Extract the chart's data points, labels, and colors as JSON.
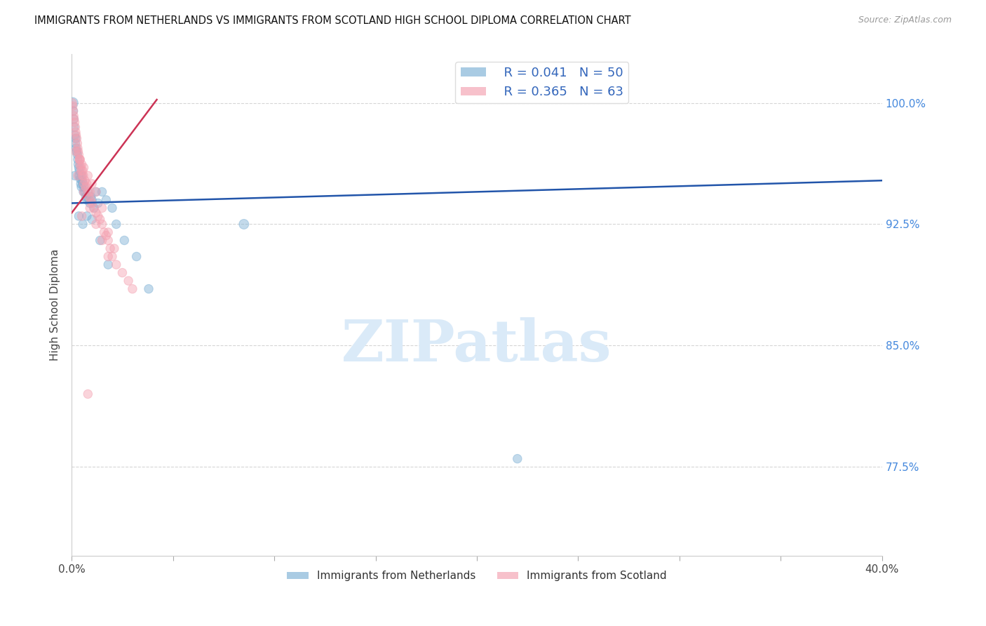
{
  "title": "IMMIGRANTS FROM NETHERLANDS VS IMMIGRANTS FROM SCOTLAND HIGH SCHOOL DIPLOMA CORRELATION CHART",
  "source": "Source: ZipAtlas.com",
  "ylabel": "High School Diploma",
  "xlim": [
    0.0,
    40.0
  ],
  "ylim": [
    72.0,
    103.0
  ],
  "yticks": [
    77.5,
    85.0,
    92.5,
    100.0
  ],
  "xtick_vals": [
    0.0,
    5.0,
    10.0,
    15.0,
    20.0,
    25.0,
    30.0,
    35.0,
    40.0
  ],
  "legend_blue_r": "R = 0.041",
  "legend_blue_n": "N = 50",
  "legend_pink_r": "R = 0.365",
  "legend_pink_n": "N = 63",
  "blue_color": "#7BAFD4",
  "pink_color": "#F4A0B0",
  "trendline_blue": "#2255AA",
  "trendline_pink": "#CC3355",
  "watermark": "ZIPatlas",
  "watermark_color": "#DAEAF8",
  "netherlands_x": [
    0.05,
    0.08,
    0.1,
    0.12,
    0.15,
    0.18,
    0.2,
    0.22,
    0.25,
    0.28,
    0.3,
    0.32,
    0.35,
    0.38,
    0.4,
    0.42,
    0.45,
    0.48,
    0.5,
    0.52,
    0.55,
    0.58,
    0.6,
    0.65,
    0.7,
    0.75,
    0.8,
    0.85,
    0.9,
    0.95,
    1.0,
    1.1,
    1.2,
    1.3,
    1.5,
    1.7,
    2.0,
    2.2,
    2.6,
    3.2,
    3.8,
    0.15,
    0.35,
    0.55,
    0.75,
    1.0,
    1.4,
    1.8,
    8.5,
    22.0
  ],
  "netherlands_y": [
    100.0,
    99.5,
    99.0,
    98.5,
    98.0,
    97.5,
    97.8,
    97.2,
    97.0,
    96.8,
    96.5,
    96.2,
    96.0,
    95.8,
    95.5,
    95.3,
    95.0,
    94.8,
    95.5,
    95.2,
    95.0,
    94.5,
    94.8,
    94.5,
    94.2,
    94.0,
    94.5,
    94.0,
    93.8,
    94.2,
    94.0,
    93.5,
    94.5,
    93.8,
    94.5,
    94.0,
    93.5,
    92.5,
    91.5,
    90.5,
    88.5,
    95.5,
    93.0,
    92.5,
    93.0,
    92.8,
    91.5,
    90.0,
    92.5,
    78.0
  ],
  "netherlands_size": [
    120,
    80,
    80,
    80,
    80,
    80,
    80,
    80,
    80,
    80,
    80,
    80,
    80,
    80,
    100,
    80,
    80,
    80,
    80,
    80,
    80,
    80,
    80,
    80,
    80,
    80,
    80,
    80,
    80,
    80,
    80,
    80,
    80,
    80,
    80,
    80,
    80,
    80,
    80,
    80,
    80,
    80,
    80,
    80,
    80,
    80,
    80,
    80,
    100,
    80
  ],
  "scotland_x": [
    0.03,
    0.05,
    0.08,
    0.1,
    0.12,
    0.15,
    0.18,
    0.2,
    0.22,
    0.25,
    0.28,
    0.3,
    0.32,
    0.35,
    0.38,
    0.4,
    0.42,
    0.45,
    0.48,
    0.5,
    0.52,
    0.55,
    0.58,
    0.6,
    0.65,
    0.7,
    0.75,
    0.8,
    0.85,
    0.9,
    0.95,
    1.0,
    1.1,
    1.2,
    1.3,
    1.4,
    1.5,
    1.6,
    1.7,
    1.8,
    1.9,
    2.0,
    2.2,
    2.5,
    2.8,
    3.0,
    0.2,
    0.4,
    0.6,
    0.8,
    1.0,
    1.2,
    1.5,
    1.8,
    2.1,
    0.3,
    0.6,
    0.9,
    1.2,
    1.5,
    1.8,
    0.5,
    0.8
  ],
  "scotland_y": [
    100.0,
    99.8,
    99.5,
    99.2,
    99.0,
    98.8,
    98.5,
    98.2,
    98.0,
    97.8,
    97.5,
    97.2,
    97.0,
    96.8,
    96.5,
    96.2,
    96.5,
    96.0,
    95.8,
    96.2,
    95.5,
    95.8,
    95.5,
    95.0,
    95.2,
    94.8,
    95.0,
    94.5,
    94.2,
    94.5,
    94.0,
    93.8,
    93.5,
    93.2,
    93.0,
    92.8,
    92.5,
    92.0,
    91.8,
    91.5,
    91.0,
    90.5,
    90.0,
    89.5,
    89.0,
    88.5,
    97.0,
    96.5,
    96.0,
    95.5,
    95.0,
    94.5,
    93.5,
    92.0,
    91.0,
    95.5,
    94.5,
    93.5,
    92.5,
    91.5,
    90.5,
    93.0,
    82.0
  ],
  "scotland_size": [
    80,
    80,
    80,
    80,
    80,
    80,
    80,
    80,
    80,
    80,
    80,
    80,
    80,
    80,
    80,
    80,
    80,
    80,
    80,
    80,
    80,
    80,
    80,
    80,
    80,
    80,
    80,
    80,
    80,
    80,
    80,
    80,
    80,
    80,
    80,
    80,
    80,
    80,
    80,
    80,
    80,
    80,
    80,
    80,
    80,
    80,
    80,
    80,
    80,
    80,
    80,
    80,
    80,
    80,
    80,
    80,
    80,
    80,
    80,
    80,
    80,
    80,
    80
  ],
  "blue_trendline_x": [
    0.0,
    40.0
  ],
  "blue_trendline_y": [
    93.8,
    95.2
  ],
  "pink_trendline_x": [
    0.0,
    4.2
  ],
  "pink_trendline_y": [
    93.2,
    100.2
  ]
}
